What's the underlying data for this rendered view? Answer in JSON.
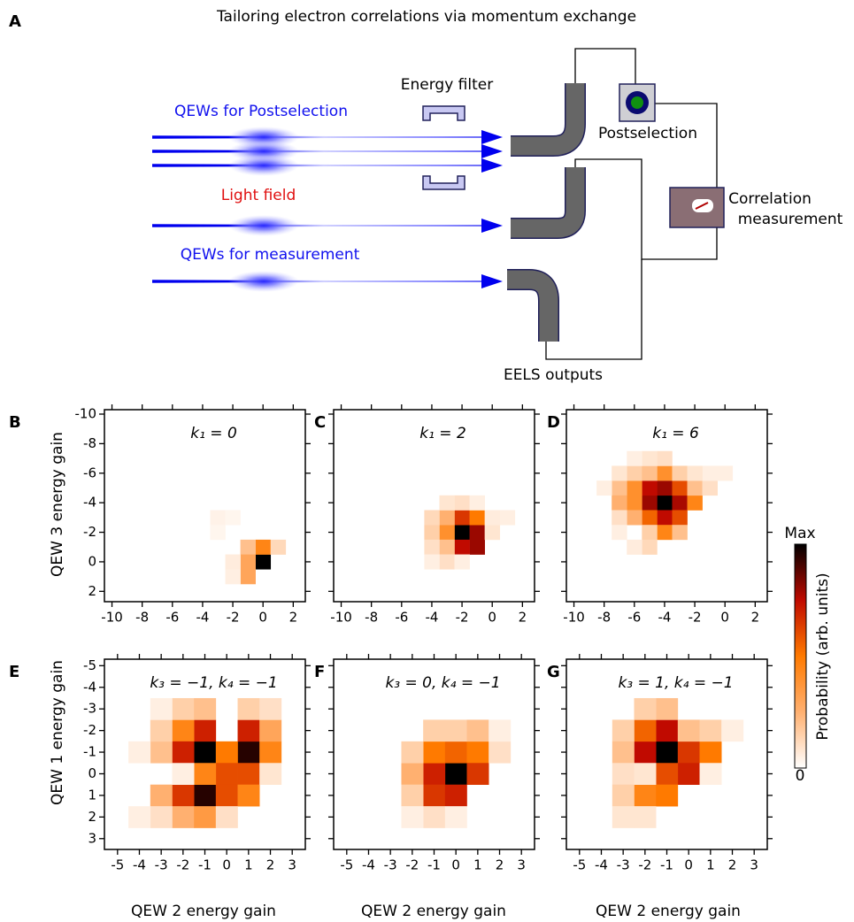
{
  "title": "Tailoring electron correlations via momentum exchange",
  "panel": "A",
  "diagram": {
    "postselection_beams": "QEWs for Postselection",
    "energy_filter": "Energy filter",
    "light_field": "Light field",
    "measurement_beams": "QEWs for measurement",
    "postselection": "Postselection",
    "correlation": [
      "Correlation",
      "measurement"
    ],
    "outputs": "EELS outputs"
  },
  "row_ylabels": [
    "QEW 3 energy gain",
    "QEW 1 energy gain"
  ],
  "xlabels": [
    "QEW 2 energy gain",
    "QEW 2 energy gain",
    "QEW 2 energy gain"
  ],
  "colorbar": {
    "label": "Probability (arb. units)",
    "max_label": "Max",
    "min_label": "0",
    "colormap": [
      "#ffffff",
      "#ffb070",
      "#ff7a00",
      "#c00a00",
      "#000000"
    ]
  },
  "heatmaps": [
    {
      "panel": "B",
      "title": "k₁ = 0",
      "xlim": [
        -10.5,
        2.8
      ],
      "ylim": [
        2.7,
        -10.3
      ],
      "xticks": [
        -10,
        -8,
        -6,
        -4,
        -2,
        0,
        2
      ],
      "yticks": [
        -10,
        -8,
        -6,
        -4,
        -2,
        0,
        2
      ],
      "cells": [
        [
          0,
          0,
          1.0
        ],
        [
          0,
          -1,
          0.45
        ],
        [
          -1,
          -1,
          0.2
        ],
        [
          1,
          -1,
          0.12
        ],
        [
          -1,
          0,
          0.3
        ],
        [
          -2,
          0,
          0.06
        ],
        [
          -1,
          1,
          0.3
        ],
        [
          -2,
          1,
          0.05
        ],
        [
          -3,
          -3,
          0.04
        ],
        [
          -2,
          -3,
          0.03
        ],
        [
          -3,
          -2,
          0.03
        ]
      ]
    },
    {
      "panel": "C",
      "title": "k₁ = 2",
      "xlim": [
        -10.5,
        2.8
      ],
      "ylim": [
        2.7,
        -10.3
      ],
      "xticks": [
        -10,
        -8,
        -6,
        -4,
        -2,
        0,
        2
      ],
      "yticks": [
        -10,
        -8,
        -6,
        -4,
        -2,
        0,
        2
      ],
      "cells": [
        [
          -2,
          -2,
          1.0
        ],
        [
          -1,
          -2,
          0.8
        ],
        [
          -1,
          -1,
          0.8
        ],
        [
          -2,
          -1,
          0.75
        ],
        [
          -2,
          -3,
          0.65
        ],
        [
          -1,
          -3,
          0.5
        ],
        [
          -3,
          -2,
          0.4
        ],
        [
          -3,
          -3,
          0.25
        ],
        [
          -4,
          -2,
          0.15
        ],
        [
          -4,
          -3,
          0.12
        ],
        [
          -3,
          -1,
          0.2
        ],
        [
          -4,
          -1,
          0.1
        ],
        [
          -2,
          -4,
          0.1
        ],
        [
          -3,
          -4,
          0.08
        ],
        [
          -1,
          -4,
          0.05
        ],
        [
          0,
          -2,
          0.08
        ],
        [
          1,
          -3,
          0.05
        ],
        [
          0,
          -3,
          0.06
        ],
        [
          -3,
          0,
          0.1
        ],
        [
          -4,
          0,
          0.05
        ],
        [
          -2,
          0,
          0.05
        ]
      ]
    },
    {
      "panel": "D",
      "title": "k₁ = 6",
      "xlim": [
        -10.5,
        2.8
      ],
      "ylim": [
        2.7,
        -10.3
      ],
      "xticks": [
        -10,
        -8,
        -6,
        -4,
        -2,
        0,
        2
      ],
      "yticks": [
        -10,
        -8,
        -6,
        -4,
        -2,
        0,
        2
      ],
      "cells": [
        [
          -4,
          -4,
          1.0
        ],
        [
          -5,
          -4,
          0.8
        ],
        [
          -4,
          -5,
          0.8
        ],
        [
          -3,
          -4,
          0.78
        ],
        [
          -4,
          -3,
          0.75
        ],
        [
          -5,
          -5,
          0.75
        ],
        [
          -3,
          -5,
          0.6
        ],
        [
          -5,
          -3,
          0.55
        ],
        [
          -3,
          -3,
          0.6
        ],
        [
          -6,
          -4,
          0.4
        ],
        [
          -6,
          -5,
          0.4
        ],
        [
          -4,
          -6,
          0.4
        ],
        [
          -2,
          -4,
          0.45
        ],
        [
          -4,
          -2,
          0.45
        ],
        [
          -7,
          -5,
          0.2
        ],
        [
          -7,
          -4,
          0.25
        ],
        [
          -6,
          -6,
          0.15
        ],
        [
          -5,
          -6,
          0.2
        ],
        [
          -3,
          -6,
          0.15
        ],
        [
          -4,
          -7,
          0.1
        ],
        [
          -5,
          -7,
          0.08
        ],
        [
          -6,
          -3,
          0.25
        ],
        [
          -5,
          -2,
          0.15
        ],
        [
          -3,
          -2,
          0.2
        ],
        [
          -2,
          -5,
          0.2
        ],
        [
          -1,
          -5,
          0.1
        ],
        [
          -7,
          -6,
          0.08
        ],
        [
          -7,
          -3,
          0.1
        ],
        [
          -8,
          -5,
          0.05
        ],
        [
          -6,
          -7,
          0.05
        ],
        [
          -1,
          -6,
          0.05
        ],
        [
          0,
          -6,
          0.05
        ],
        [
          -5,
          -1,
          0.12
        ],
        [
          -6,
          -1,
          0.06
        ],
        [
          -7,
          -2,
          0.05
        ],
        [
          -2,
          -6,
          0.08
        ]
      ]
    },
    {
      "panel": "E",
      "title": "k₃ = −1, k₄ = −1",
      "xlim": [
        -5.6,
        3.6
      ],
      "ylim": [
        3.5,
        -5.3
      ],
      "xticks": [
        -5,
        -4,
        -3,
        -2,
        -1,
        0,
        1,
        2,
        3
      ],
      "yticks": [
        -5,
        -4,
        -3,
        -2,
        -1,
        0,
        1,
        2,
        3
      ],
      "cells": [
        [
          -1,
          -1,
          1.0
        ],
        [
          1,
          -1,
          0.95
        ],
        [
          -1,
          1,
          0.95
        ],
        [
          -1,
          -2,
          0.7
        ],
        [
          1,
          -2,
          0.7
        ],
        [
          -2,
          -2,
          0.45
        ],
        [
          -2,
          -1,
          0.7
        ],
        [
          0,
          -1,
          0.5
        ],
        [
          2,
          -1,
          0.45
        ],
        [
          2,
          -2,
          0.3
        ],
        [
          0,
          0,
          0.6
        ],
        [
          1,
          0,
          0.6
        ],
        [
          -1,
          0,
          0.45
        ],
        [
          -2,
          1,
          0.65
        ],
        [
          0,
          1,
          0.6
        ],
        [
          1,
          1,
          0.45
        ],
        [
          -3,
          1,
          0.25
        ],
        [
          -2,
          2,
          0.25
        ],
        [
          -1,
          2,
          0.35
        ],
        [
          -3,
          -1,
          0.2
        ],
        [
          -3,
          -2,
          0.15
        ],
        [
          -2,
          -3,
          0.15
        ],
        [
          -1,
          -3,
          0.2
        ],
        [
          1,
          -3,
          0.15
        ],
        [
          2,
          -3,
          0.1
        ],
        [
          -3,
          2,
          0.1
        ],
        [
          0,
          2,
          0.1
        ],
        [
          2,
          0,
          0.08
        ],
        [
          -2,
          0,
          0.05
        ],
        [
          -4,
          -1,
          0.05
        ],
        [
          -3,
          -3,
          0.05
        ],
        [
          -4,
          2,
          0.05
        ]
      ]
    },
    {
      "panel": "F",
      "title": "k₃ = 0, k₄ = −1",
      "xlim": [
        -5.6,
        3.6
      ],
      "ylim": [
        3.5,
        -5.3
      ],
      "xticks": [
        -5,
        -4,
        -3,
        -2,
        -1,
        0,
        1,
        2,
        3
      ],
      "yticks": [
        -5,
        -4,
        -3,
        -2,
        -1,
        0,
        1,
        2,
        3
      ],
      "cells": [
        [
          0,
          0,
          1.0
        ],
        [
          -1,
          0,
          0.7
        ],
        [
          -1,
          -1,
          0.5
        ],
        [
          0,
          -1,
          0.55
        ],
        [
          1,
          -1,
          0.5
        ],
        [
          1,
          0,
          0.65
        ],
        [
          -1,
          1,
          0.65
        ],
        [
          0,
          1,
          0.7
        ],
        [
          -2,
          0,
          0.25
        ],
        [
          -2,
          -1,
          0.15
        ],
        [
          -2,
          1,
          0.15
        ],
        [
          -1,
          -2,
          0.15
        ],
        [
          0,
          -2,
          0.15
        ],
        [
          1,
          -2,
          0.2
        ],
        [
          2,
          -1,
          0.1
        ],
        [
          2,
          -2,
          0.05
        ],
        [
          -1,
          2,
          0.1
        ],
        [
          -2,
          2,
          0.05
        ],
        [
          0,
          2,
          0.05
        ]
      ]
    },
    {
      "panel": "G",
      "title": "k₃ = 1, k₄ = −1",
      "xlim": [
        -5.6,
        3.6
      ],
      "ylim": [
        3.5,
        -5.3
      ],
      "xticks": [
        -5,
        -4,
        -3,
        -2,
        -1,
        0,
        1,
        2,
        3
      ],
      "yticks": [
        -5,
        -4,
        -3,
        -2,
        -1,
        0,
        1,
        2,
        3
      ],
      "cells": [
        [
          -1,
          -1,
          1.0
        ],
        [
          -1,
          -2,
          0.75
        ],
        [
          -2,
          -1,
          0.75
        ],
        [
          -2,
          -2,
          0.55
        ],
        [
          0,
          -1,
          0.65
        ],
        [
          1,
          -1,
          0.5
        ],
        [
          0,
          0,
          0.7
        ],
        [
          -1,
          0,
          0.6
        ],
        [
          -2,
          1,
          0.45
        ],
        [
          -1,
          1,
          0.5
        ],
        [
          0,
          -2,
          0.2
        ],
        [
          -1,
          -3,
          0.2
        ],
        [
          -2,
          -3,
          0.15
        ],
        [
          -3,
          -2,
          0.15
        ],
        [
          -3,
          -1,
          0.2
        ],
        [
          -3,
          0,
          0.1
        ],
        [
          1,
          -2,
          0.15
        ],
        [
          2,
          -2,
          0.05
        ],
        [
          -3,
          1,
          0.15
        ],
        [
          -2,
          0,
          0.08
        ],
        [
          -3,
          2,
          0.08
        ],
        [
          -2,
          2,
          0.08
        ],
        [
          1,
          0,
          0.05
        ]
      ]
    }
  ]
}
